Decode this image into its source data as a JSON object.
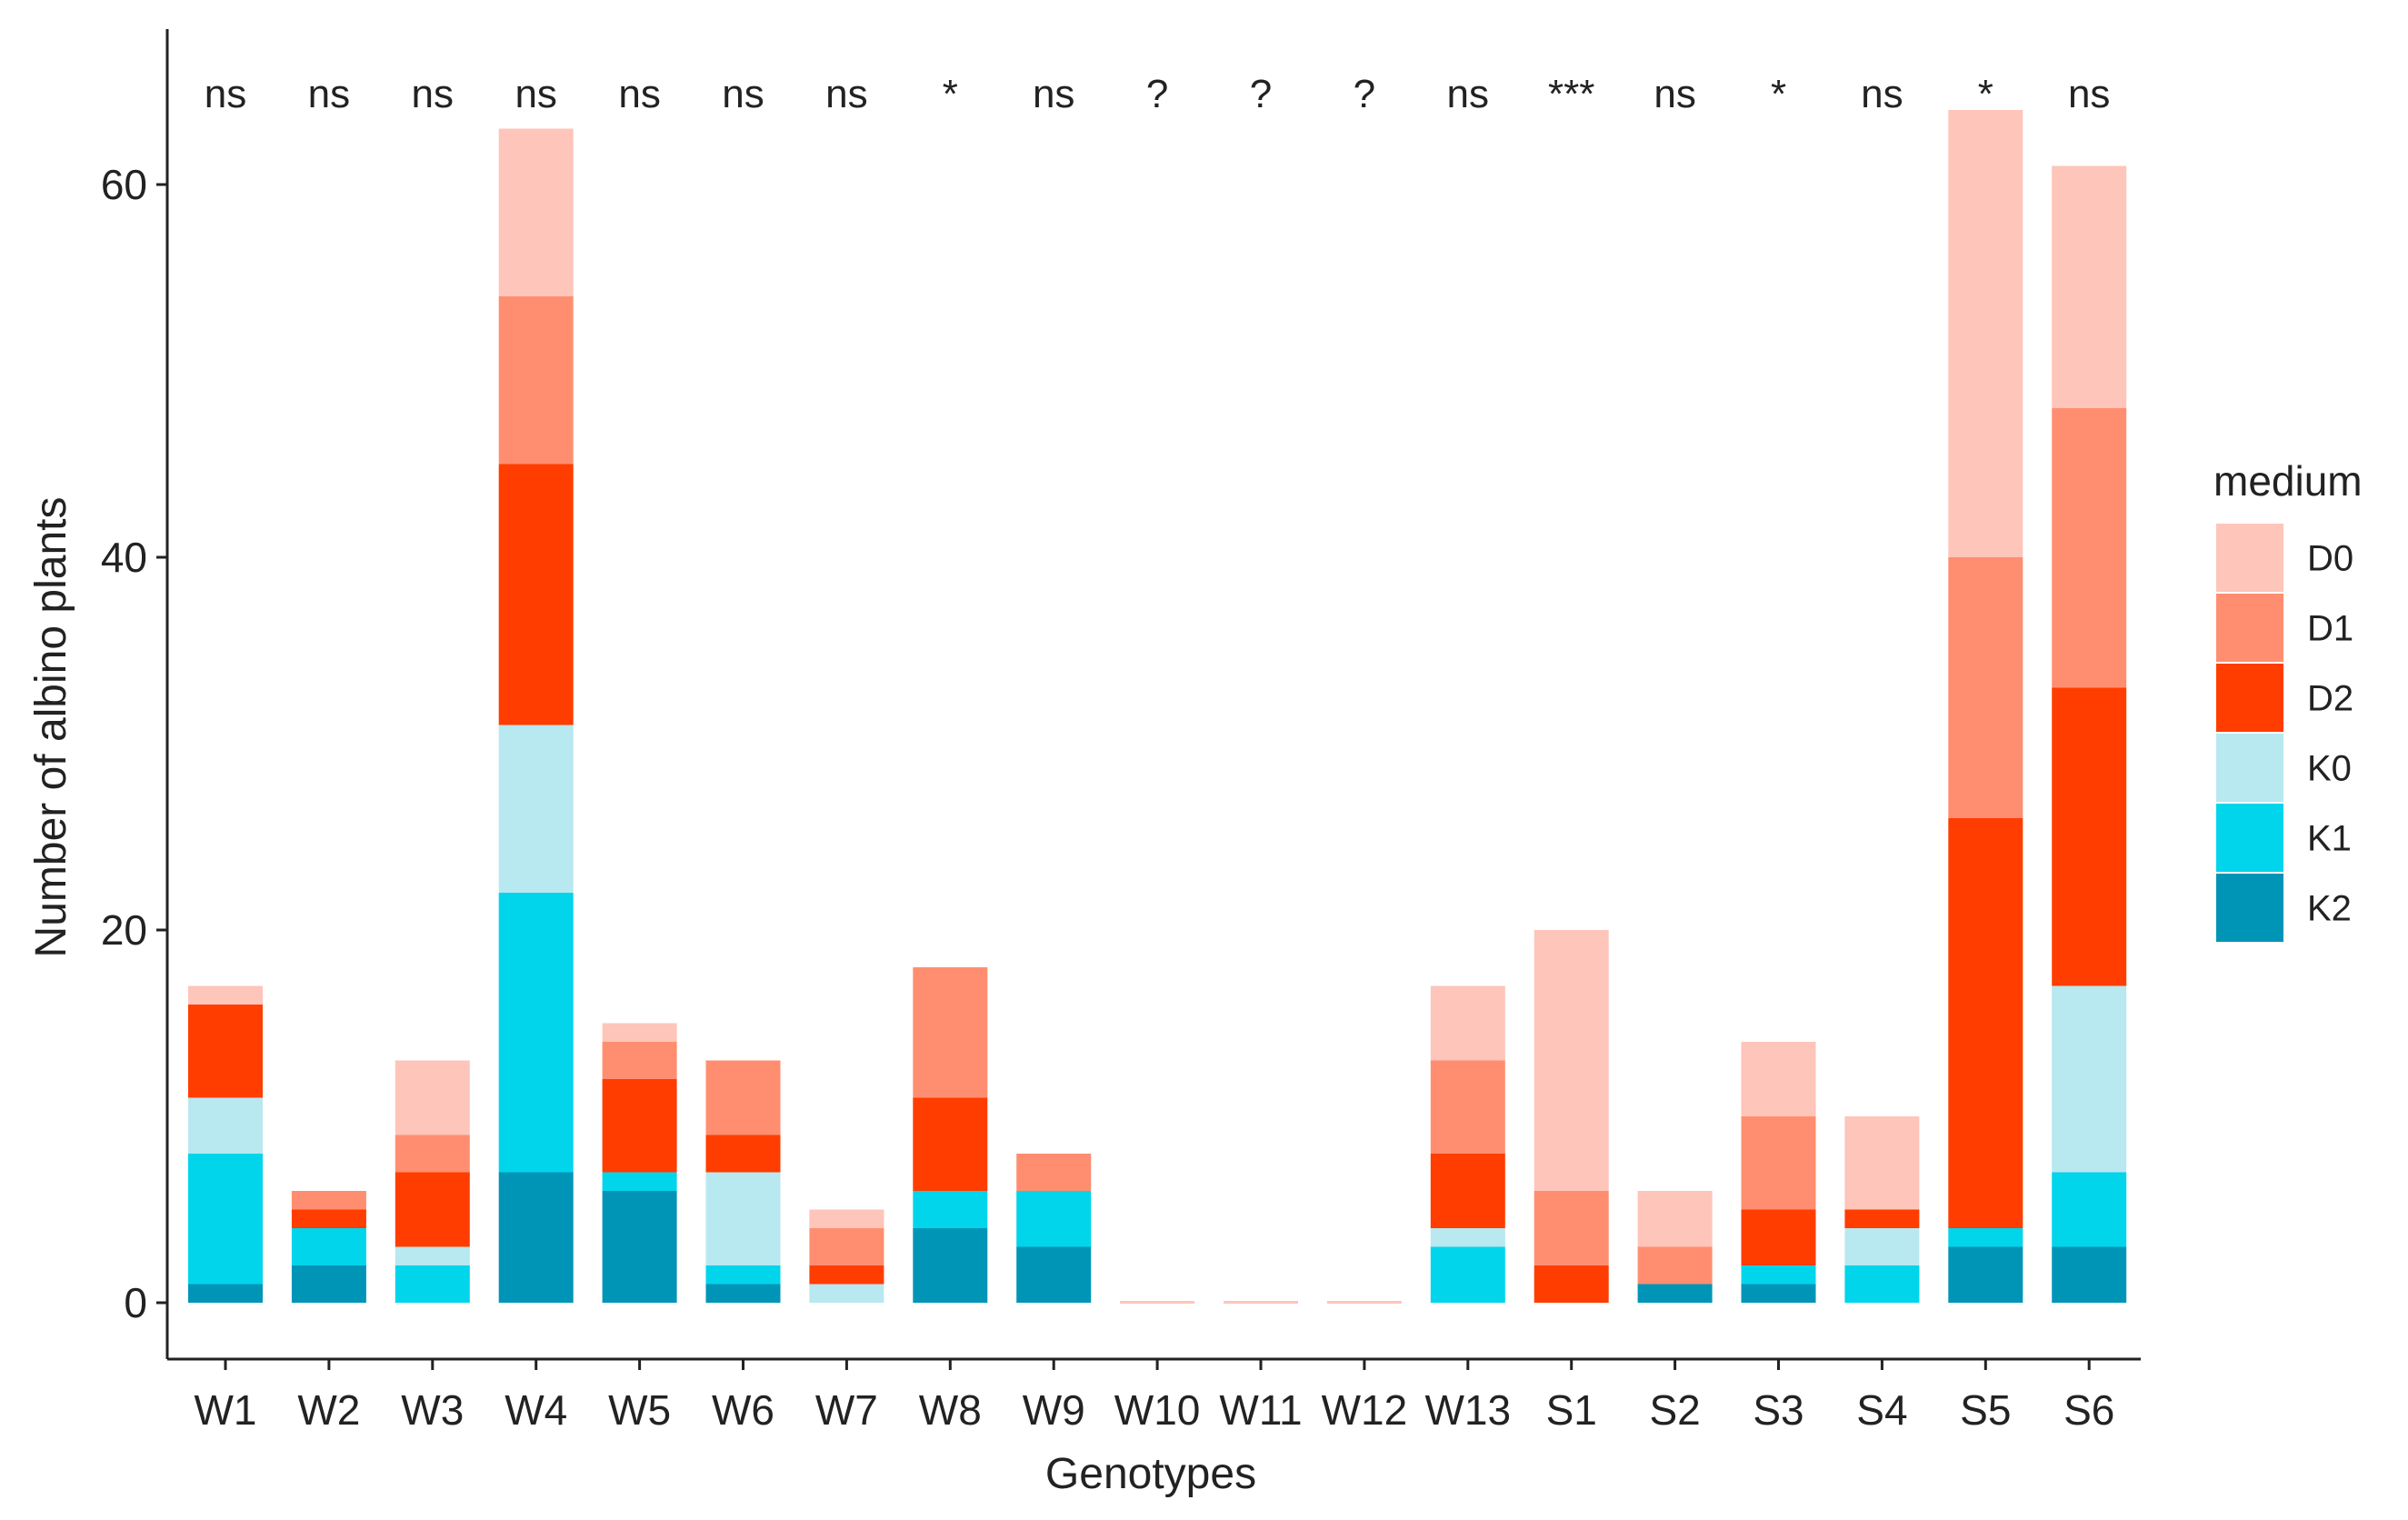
{
  "chart_data": {
    "type": "bar",
    "stacked": true,
    "xlabel": "Genotypes",
    "ylabel": "Number of albino plants",
    "ylim": [
      -6,
      68
    ],
    "yticks": [
      0,
      20,
      40,
      60
    ],
    "legend_title": "medium",
    "legend_position": "right",
    "categories": [
      "W1",
      "W2",
      "W3",
      "W4",
      "W5",
      "W6",
      "W7",
      "W8",
      "W9",
      "W10",
      "W11",
      "W12",
      "W13",
      "S1",
      "S2",
      "S3",
      "S4",
      "S5",
      "S6"
    ],
    "significance": [
      "ns",
      "ns",
      "ns",
      "ns",
      "ns",
      "ns",
      "ns",
      "*",
      "ns",
      "?",
      "?",
      "?",
      "ns",
      "***",
      "ns",
      "*",
      "ns",
      "*",
      "ns"
    ],
    "series": [
      {
        "name": "K2",
        "color": "#0095B6",
        "values": [
          1,
          2,
          0,
          7,
          6,
          1,
          0,
          4,
          3,
          0,
          0,
          0,
          0,
          0,
          1,
          1,
          0,
          3,
          3
        ]
      },
      {
        "name": "K1",
        "color": "#00D5EB",
        "values": [
          7,
          2,
          2,
          15,
          1,
          1,
          0,
          2,
          3,
          0,
          0,
          0,
          3,
          0,
          0,
          1,
          2,
          1,
          4
        ]
      },
      {
        "name": "K0",
        "color": "#B8E8F0",
        "values": [
          3,
          0,
          1,
          9,
          0,
          5,
          1,
          0,
          0,
          0,
          0,
          0,
          1,
          0,
          0,
          0,
          2,
          0,
          10
        ]
      },
      {
        "name": "D2",
        "color": "#FF3D00",
        "values": [
          5,
          1,
          4,
          14,
          5,
          2,
          1,
          5,
          0,
          0,
          0,
          0,
          4,
          2,
          0,
          3,
          1,
          22,
          16
        ]
      },
      {
        "name": "D1",
        "color": "#FF8E70",
        "values": [
          0,
          1,
          2,
          9,
          2,
          4,
          2,
          7,
          2,
          0,
          0,
          0,
          5,
          4,
          2,
          5,
          0,
          14,
          15
        ]
      },
      {
        "name": "D0",
        "color": "#FEC5BA",
        "values": [
          1,
          0,
          4,
          9,
          1,
          0,
          1,
          0,
          0,
          0,
          0,
          0,
          4,
          14,
          3,
          4,
          5,
          24,
          13
        ]
      }
    ]
  }
}
